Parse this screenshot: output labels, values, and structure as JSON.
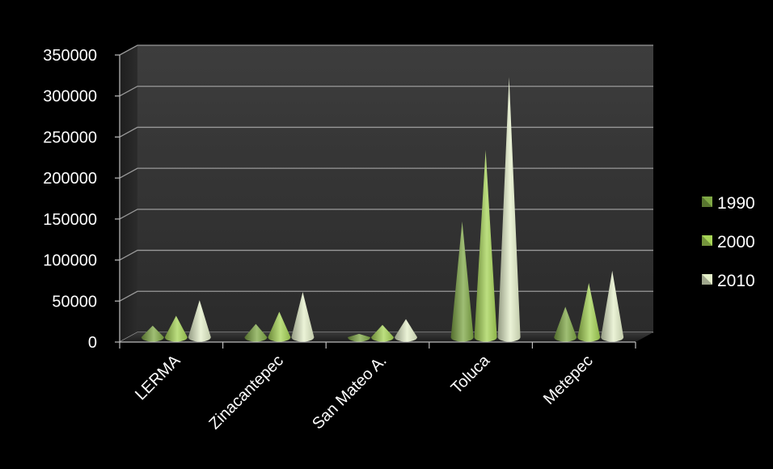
{
  "chart_data": {
    "type": "bar",
    "bar_shape": "cone",
    "categories": [
      "LERMA",
      "Zinacantepec",
      "San Mateo A.",
      "Toluca",
      "Metepec"
    ],
    "series": [
      {
        "name": "1990",
        "values": [
          20000,
          22000,
          10000,
          147000,
          43000
        ],
        "color": "#7fa845"
      },
      {
        "name": "2000",
        "values": [
          32000,
          37000,
          21000,
          234000,
          72000
        ],
        "color": "#a6d456"
      },
      {
        "name": "2010",
        "values": [
          51000,
          61000,
          28000,
          323000,
          87000
        ],
        "color": "#e4efc9"
      }
    ],
    "ylim": [
      0,
      350000
    ],
    "yticks": [
      "0",
      "50000",
      "100000",
      "150000",
      "200000",
      "250000",
      "300000",
      "350000"
    ],
    "grid": true,
    "legend_position": "right",
    "background": "#000000",
    "wall_color": "#3a3a3a",
    "gridline_color": "#9a9a9a",
    "text_color": "#ffffff"
  }
}
